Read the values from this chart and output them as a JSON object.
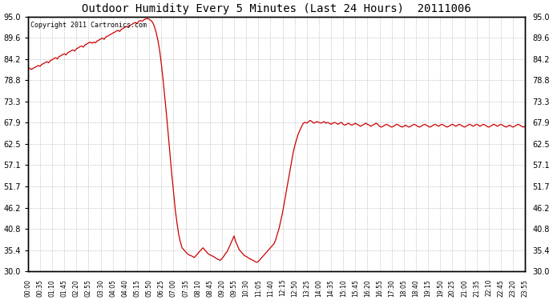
{
  "title": "Outdoor Humidity Every 5 Minutes (Last 24 Hours)  20111006",
  "copyright": "Copyright 2011 Cartronics.com",
  "line_color": "#cc0000",
  "bg_color": "#ffffff",
  "grid_color": "#bbbbbb",
  "ylim": [
    30.0,
    95.0
  ],
  "yticks": [
    30.0,
    35.4,
    40.8,
    46.2,
    51.7,
    57.1,
    62.5,
    67.9,
    73.3,
    78.8,
    84.2,
    89.6,
    95.0
  ],
  "tick_interval_minutes": 35,
  "humidity_data": [
    82.0,
    81.8,
    81.5,
    81.8,
    82.0,
    82.3,
    82.5,
    82.3,
    82.8,
    83.0,
    83.3,
    83.5,
    83.2,
    83.8,
    84.0,
    84.3,
    84.5,
    84.2,
    84.8,
    85.0,
    85.3,
    85.5,
    85.2,
    85.8,
    86.0,
    86.3,
    86.5,
    86.2,
    86.8,
    87.0,
    87.3,
    87.5,
    87.2,
    87.8,
    88.0,
    88.3,
    88.5,
    88.2,
    88.5,
    88.3,
    88.8,
    89.0,
    89.3,
    89.5,
    89.2,
    89.8,
    90.0,
    90.3,
    90.5,
    90.8,
    91.0,
    91.3,
    91.5,
    91.2,
    91.8,
    92.0,
    92.3,
    92.5,
    92.2,
    92.8,
    93.0,
    93.3,
    93.5,
    93.2,
    93.8,
    94.0,
    93.8,
    94.2,
    94.4,
    94.5,
    94.3,
    94.0,
    93.5,
    92.5,
    91.0,
    89.0,
    86.5,
    83.0,
    79.0,
    74.5,
    70.0,
    65.0,
    60.0,
    55.0,
    50.5,
    46.0,
    42.5,
    39.5,
    37.5,
    36.0,
    35.5,
    35.0,
    34.5,
    34.2,
    34.0,
    33.8,
    33.5,
    34.0,
    34.5,
    35.0,
    35.5,
    36.0,
    35.5,
    35.0,
    34.5,
    34.2,
    34.0,
    33.8,
    33.5,
    33.2,
    33.0,
    32.8,
    33.2,
    33.8,
    34.5,
    35.0,
    36.0,
    37.0,
    38.0,
    39.0,
    37.5,
    36.5,
    35.5,
    35.0,
    34.5,
    34.0,
    33.8,
    33.5,
    33.2,
    33.0,
    32.8,
    32.5,
    32.3,
    32.5,
    33.0,
    33.5,
    34.0,
    34.5,
    35.0,
    35.5,
    36.0,
    36.5,
    37.0,
    38.0,
    39.5,
    41.0,
    43.0,
    45.0,
    47.5,
    50.0,
    52.5,
    55.0,
    57.5,
    60.0,
    62.0,
    63.5,
    65.0,
    66.0,
    67.0,
    67.8,
    68.0,
    67.8,
    68.2,
    68.5,
    68.2,
    67.8,
    68.0,
    68.2,
    68.0,
    67.8,
    68.0,
    68.2,
    67.8,
    68.0,
    67.8,
    67.5,
    67.8,
    68.0,
    67.8,
    67.5,
    67.8,
    68.0,
    67.5,
    67.3,
    67.5,
    67.8,
    67.5,
    67.3,
    67.5,
    67.8,
    67.5,
    67.3,
    67.0,
    67.3,
    67.5,
    67.8,
    67.5,
    67.3,
    67.0,
    67.3,
    67.5,
    67.8,
    67.5,
    67.0,
    66.8,
    67.0,
    67.3,
    67.5,
    67.3,
    67.0,
    66.8,
    67.0,
    67.3,
    67.5,
    67.3,
    67.0,
    66.8,
    67.0,
    67.3,
    67.0,
    66.8,
    67.0,
    67.3,
    67.5,
    67.3,
    67.0,
    66.8,
    67.0,
    67.3,
    67.5,
    67.3,
    67.0,
    66.8,
    67.0,
    67.3,
    67.5,
    67.3,
    67.0,
    67.3,
    67.5,
    67.3,
    67.0,
    66.8,
    67.0,
    67.3,
    67.5,
    67.3,
    67.0,
    67.3,
    67.5,
    67.3,
    67.0,
    66.8,
    67.0,
    67.3,
    67.5,
    67.3,
    67.0,
    67.3,
    67.5,
    67.3,
    67.0,
    67.3,
    67.5,
    67.3,
    67.0,
    66.8,
    67.0,
    67.3,
    67.5,
    67.3,
    67.0,
    67.3,
    67.5,
    67.3,
    67.0,
    66.8,
    67.0,
    67.3,
    67.0,
    66.8,
    67.0,
    67.3,
    67.5,
    67.3,
    67.0,
    66.8,
    67.0,
    67.3,
    67.5,
    67.3,
    67.0
  ]
}
